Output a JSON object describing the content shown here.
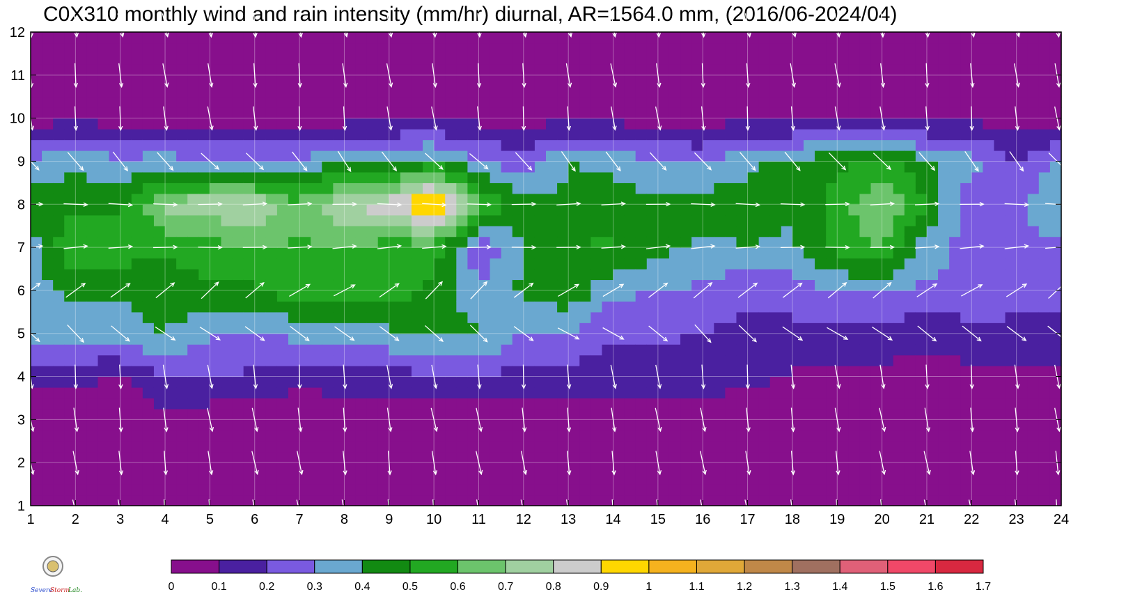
{
  "chart_data": {
    "type": "heatmap",
    "title": "C0X310 monthly wind and rain intensity (mm/hr) diurnal, AR=1564.0 mm, (2016/06-2024/04)",
    "x": [
      1,
      2,
      3,
      4,
      5,
      6,
      7,
      8,
      9,
      10,
      11,
      12,
      13,
      14,
      15,
      16,
      17,
      18,
      19,
      20,
      21,
      22,
      23,
      24
    ],
    "y": [
      1,
      2,
      3,
      4,
      5,
      6,
      7,
      8,
      9,
      10,
      11,
      12
    ],
    "xlim": [
      1,
      24
    ],
    "ylim": [
      1,
      12
    ],
    "grid": true,
    "colorbar": {
      "placement": "bottom",
      "levels": [
        0,
        0.1,
        0.2,
        0.3,
        0.4,
        0.5,
        0.6,
        0.7,
        0.8,
        0.9,
        1,
        1.1,
        1.2,
        1.3,
        1.4,
        1.5,
        1.6,
        1.7
      ],
      "level_labels": [
        "0",
        "0.1",
        "0.2",
        "0.3",
        "0.4",
        "0.5",
        "0.6",
        "0.7",
        "0.8",
        "0.9",
        "1",
        "1.1",
        "1.2",
        "1.3",
        "1.4",
        "1.5",
        "1.6",
        "1.7"
      ],
      "colors": [
        "#870f8c",
        "#4a20a0",
        "#7a5ae0",
        "#6aa8d0",
        "#128a12",
        "#22a822",
        "#6cc46c",
        "#a0d0a0",
        "#cccccc",
        "#ffd700",
        "#f5b21e",
        "#e0a838",
        "#c08848",
        "#a07060",
        "#e06078",
        "#f04868",
        "#d82840"
      ]
    },
    "rain_profile": {
      "description_months": [
        1,
        2,
        3,
        4,
        5,
        6,
        7,
        8,
        9,
        10,
        11,
        12
      ],
      "hourly_peak_value": 1.05,
      "peak_hour": 10,
      "peak_month": 8
    },
    "z": [
      [
        0.02,
        0.02,
        0.02,
        0.02,
        0.02,
        0.02,
        0.02,
        0.02,
        0.02,
        0.02,
        0.02,
        0.02,
        0.02,
        0.02,
        0.02,
        0.02,
        0.02,
        0.02,
        0.02,
        0.02,
        0.02,
        0.02,
        0.02,
        0.02
      ],
      [
        0.02,
        0.02,
        0.02,
        0.02,
        0.02,
        0.02,
        0.02,
        0.02,
        0.02,
        0.02,
        0.02,
        0.02,
        0.02,
        0.02,
        0.02,
        0.02,
        0.02,
        0.02,
        0.02,
        0.02,
        0.02,
        0.02,
        0.02,
        0.02
      ],
      [
        0.03,
        0.03,
        0.03,
        0.04,
        0.04,
        0.04,
        0.04,
        0.05,
        0.05,
        0.04,
        0.04,
        0.04,
        0.04,
        0.04,
        0.04,
        0.04,
        0.04,
        0.04,
        0.04,
        0.04,
        0.04,
        0.04,
        0.04,
        0.04
      ],
      [
        0.12,
        0.14,
        0.09,
        0.22,
        0.2,
        0.18,
        0.12,
        0.15,
        0.16,
        0.19,
        0.19,
        0.17,
        0.15,
        0.14,
        0.15,
        0.14,
        0.13,
        0.09,
        0.09,
        0.08,
        0.06,
        0.08,
        0.09,
        0.09
      ],
      [
        0.38,
        0.32,
        0.35,
        0.4,
        0.31,
        0.3,
        0.33,
        0.36,
        0.38,
        0.42,
        0.42,
        0.3,
        0.3,
        0.22,
        0.22,
        0.2,
        0.17,
        0.17,
        0.15,
        0.15,
        0.12,
        0.16,
        0.15,
        0.12
      ],
      [
        0.36,
        0.42,
        0.42,
        0.45,
        0.48,
        0.48,
        0.56,
        0.58,
        0.55,
        0.46,
        0.32,
        0.42,
        0.48,
        0.32,
        0.3,
        0.28,
        0.22,
        0.25,
        0.3,
        0.32,
        0.28,
        0.28,
        0.28,
        0.28
      ],
      [
        0.32,
        0.62,
        0.55,
        0.52,
        0.55,
        0.62,
        0.58,
        0.6,
        0.55,
        0.55,
        0.22,
        0.4,
        0.5,
        0.52,
        0.42,
        0.38,
        0.4,
        0.38,
        0.55,
        0.6,
        0.35,
        0.26,
        0.26,
        0.28
      ],
      [
        0.48,
        0.45,
        0.48,
        0.72,
        0.78,
        0.78,
        0.62,
        0.82,
        0.85,
        1.05,
        0.65,
        0.42,
        0.42,
        0.45,
        0.42,
        0.45,
        0.45,
        0.42,
        0.55,
        0.7,
        0.5,
        0.22,
        0.28,
        0.42
      ],
      [
        0.32,
        0.38,
        0.32,
        0.35,
        0.3,
        0.3,
        0.32,
        0.38,
        0.4,
        0.45,
        0.3,
        0.25,
        0.4,
        0.38,
        0.3,
        0.28,
        0.38,
        0.42,
        0.48,
        0.55,
        0.42,
        0.35,
        0.2,
        0.32
      ],
      [
        0.05,
        0.08,
        0.05,
        0.06,
        0.05,
        0.06,
        0.04,
        0.06,
        0.07,
        0.08,
        0.07,
        0.06,
        0.07,
        0.07,
        0.05,
        0.06,
        0.07,
        0.07,
        0.07,
        0.08,
        0.07,
        0.08,
        0.04,
        0.06
      ],
      [
        0.02,
        0.02,
        0.02,
        0.02,
        0.02,
        0.02,
        0.02,
        0.02,
        0.02,
        0.02,
        0.02,
        0.02,
        0.02,
        0.02,
        0.02,
        0.02,
        0.02,
        0.02,
        0.02,
        0.02,
        0.02,
        0.02,
        0.02,
        0.02
      ],
      [
        0.02,
        0.02,
        0.02,
        0.02,
        0.02,
        0.02,
        0.02,
        0.02,
        0.02,
        0.02,
        0.02,
        0.02,
        0.02,
        0.02,
        0.02,
        0.02,
        0.02,
        0.02,
        0.02,
        0.02,
        0.02,
        0.02,
        0.02,
        0.02
      ]
    ],
    "wind": {
      "note": "u/v components per (month, hour); arrows are drawn per grid cell",
      "u_by_month": [
        0.15,
        0.15,
        0.15,
        0.1,
        0.4,
        0.4,
        0.9,
        0.95,
        0.4,
        0.1,
        0.12,
        0.15
      ],
      "v_by_month": [
        -1.0,
        -1.0,
        -1.0,
        -0.9,
        -0.3,
        0.3,
        0.05,
        0.0,
        -0.45,
        -0.9,
        -1.0,
        -1.0
      ]
    }
  },
  "logo": {
    "lab_text_1": "Severe",
    "lab_text_2": "Storm",
    "lab_text_3": "Lab."
  }
}
